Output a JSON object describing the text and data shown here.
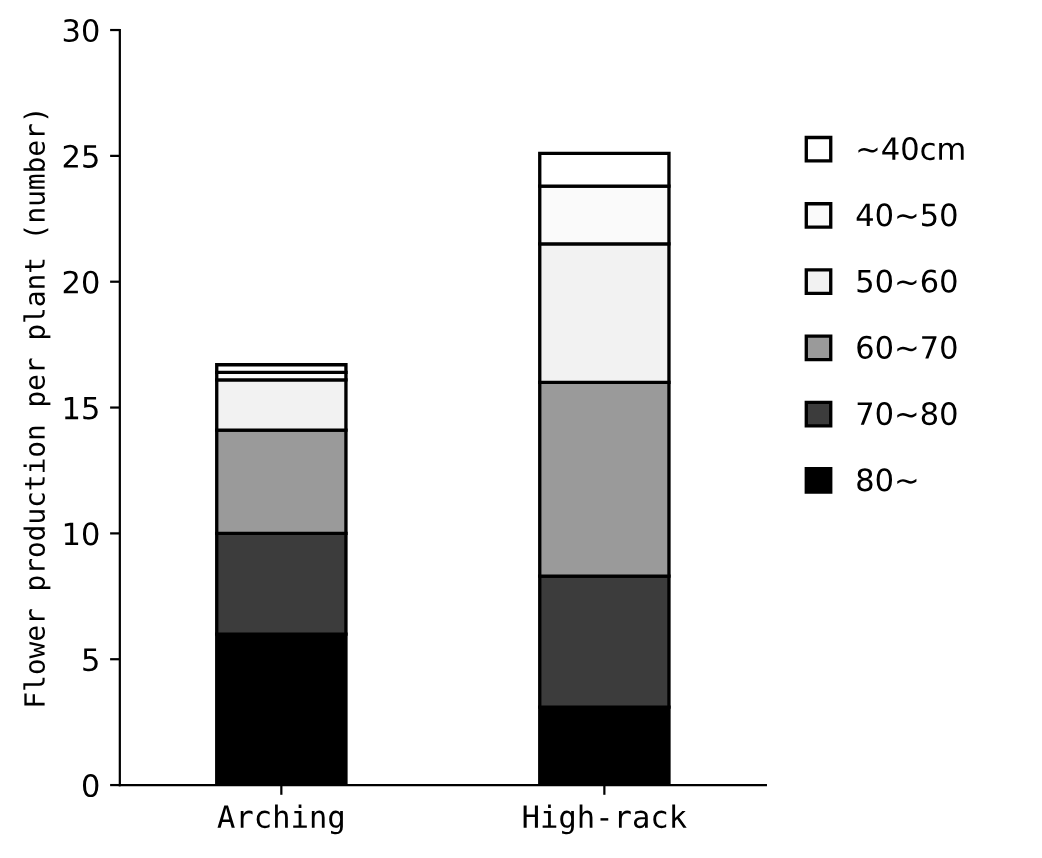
{
  "chart_data": {
    "type": "bar",
    "stacked": true,
    "ylabel": "Flower production per plant (number)",
    "categories": [
      "Arching",
      "High-rack"
    ],
    "series": [
      {
        "name": "80~",
        "color": "#000000",
        "values": [
          6.0,
          3.1
        ]
      },
      {
        "name": "70~80",
        "color": "#3c3c3c",
        "values": [
          4.0,
          5.2
        ]
      },
      {
        "name": "60~70",
        "color": "#9a9a9a",
        "values": [
          4.1,
          7.7
        ]
      },
      {
        "name": "50~60",
        "color": "#f2f2f2",
        "values": [
          2.0,
          5.5
        ]
      },
      {
        "name": "40~50",
        "color": "#fafafa",
        "values": [
          0.3,
          2.3
        ]
      },
      {
        "name": "~40cm",
        "color": "#ffffff",
        "values": [
          0.3,
          1.3
        ]
      }
    ],
    "ylim": [
      0,
      30
    ],
    "yticks": [
      0,
      5,
      10,
      15,
      20,
      25,
      30
    ],
    "grid": false,
    "legend": "right"
  }
}
